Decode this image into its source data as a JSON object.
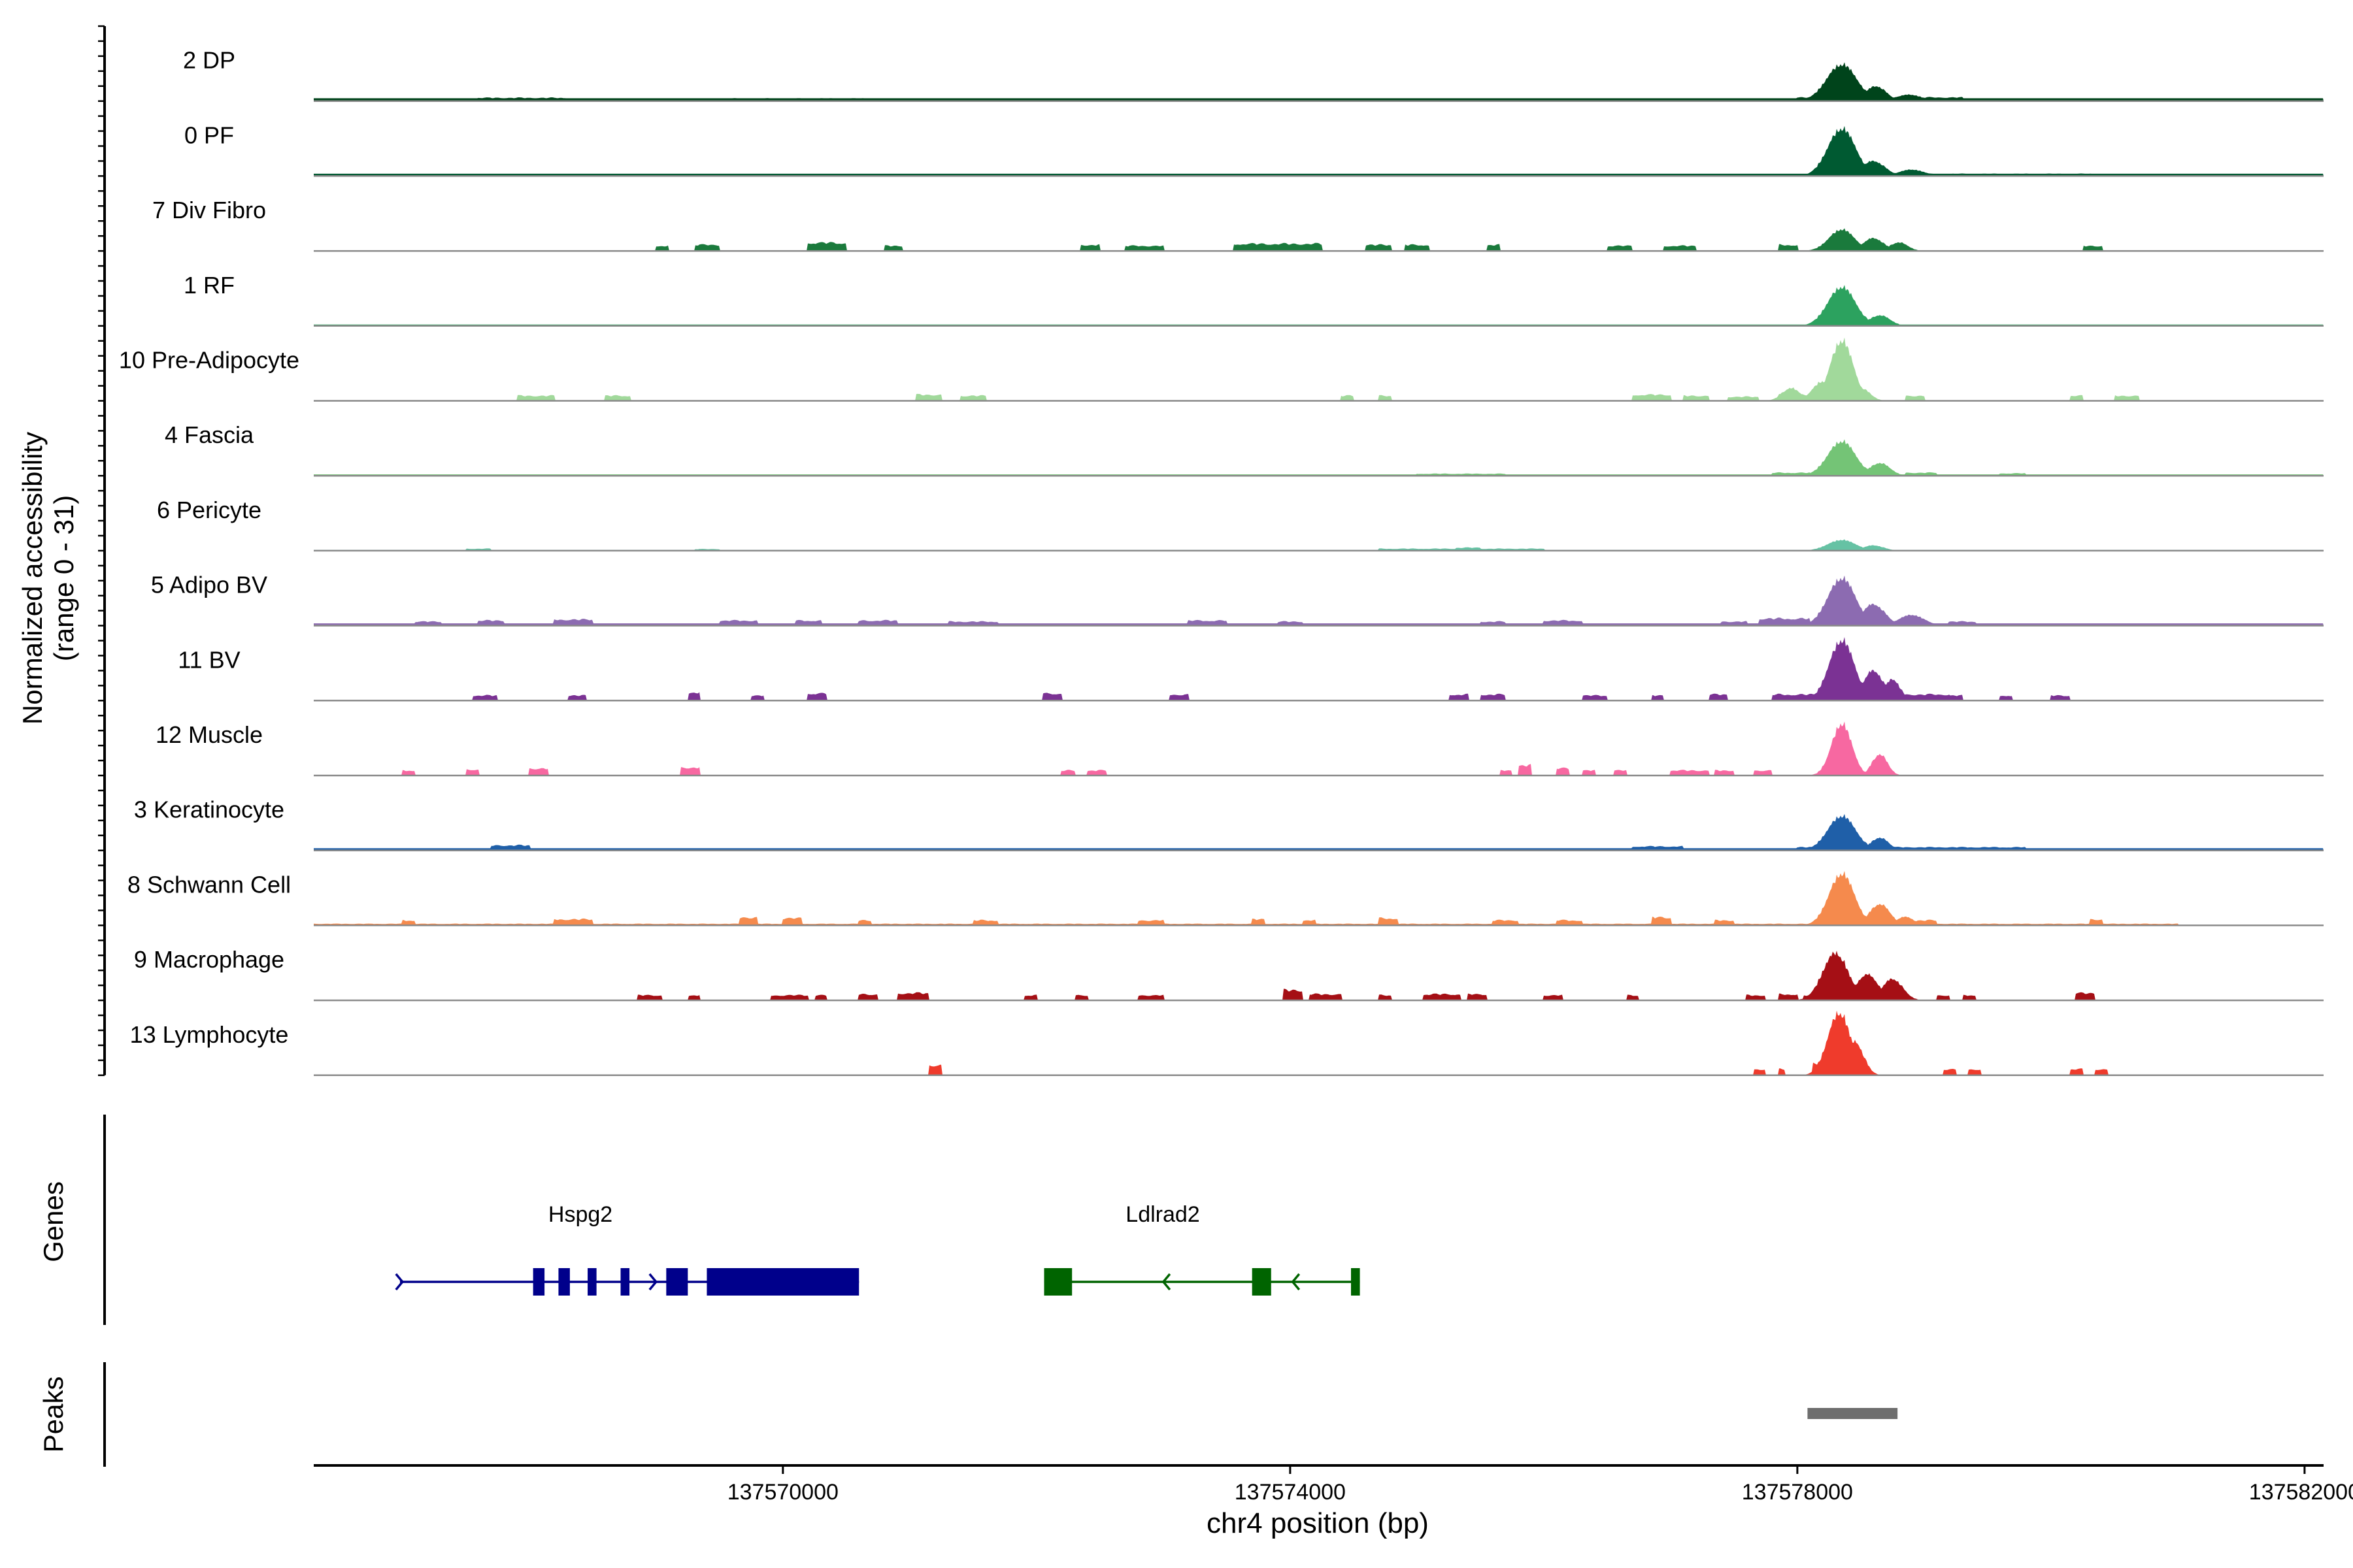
{
  "chart_data": {
    "type": "area",
    "title": "",
    "xlabel": "chr4 position (bp)",
    "ylabel_line1": "Normalized accessibility",
    "ylabel_line2": "(range 0 - 31)",
    "ylim": [
      0,
      31
    ],
    "xlim": [
      137566300,
      137582150
    ],
    "x_ticks": [
      {
        "value": 137570000,
        "label": "137570000"
      },
      {
        "value": 137574000,
        "label": "137574000"
      },
      {
        "value": 137578000,
        "label": "137578000"
      },
      {
        "value": 137582000,
        "label": "137582000"
      }
    ],
    "series": [
      {
        "name": "2 DP",
        "color": "#00441b",
        "base": 1.2,
        "spread": [
          [
            137566900,
            137567100,
            1.0
          ],
          [
            137567600,
            137568300,
            1.6
          ],
          [
            137569400,
            137570700,
            1.3
          ],
          [
            137573700,
            137575000,
            1.2
          ],
          [
            137576700,
            137577100,
            1.1
          ],
          [
            137578000,
            137579300,
            1.8
          ],
          [
            137579500,
            137580300,
            1.2
          ]
        ],
        "peaks": [
          [
            137578350,
            120,
            17
          ],
          [
            137578620,
            80,
            7
          ],
          [
            137578880,
            100,
            3
          ]
        ]
      },
      {
        "name": "0 PF",
        "color": "#005a32",
        "base": 1.0,
        "spread": [
          [
            137567700,
            137570000,
            1.0
          ],
          [
            137571500,
            137573500,
            1.0
          ],
          [
            137575000,
            137577600,
            0.9
          ],
          [
            137578900,
            137580400,
            1.1
          ]
        ],
        "peaks": [
          [
            137578350,
            110,
            22
          ],
          [
            137578600,
            90,
            7
          ],
          [
            137578900,
            100,
            3
          ]
        ]
      },
      {
        "name": "7 Div Fibro",
        "color": "#1a7a3c",
        "base": 0,
        "spread": [
          [
            137569000,
            137569100,
            2.5
          ],
          [
            137569300,
            137569500,
            3.0
          ],
          [
            137570200,
            137570500,
            4.0
          ],
          [
            137570800,
            137570950,
            2.5
          ],
          [
            137572350,
            137572500,
            3.0
          ],
          [
            137572700,
            137573000,
            2.5
          ],
          [
            137573550,
            137574250,
            3.5
          ],
          [
            137574600,
            137574800,
            3.0
          ],
          [
            137574900,
            137575100,
            3.0
          ],
          [
            137575550,
            137575650,
            3.0
          ],
          [
            137576500,
            137576700,
            2.5
          ],
          [
            137576950,
            137577200,
            2.5
          ],
          [
            137577850,
            137578000,
            3.0
          ],
          [
            137580250,
            137580400,
            2.5
          ]
        ],
        "peaks": [
          [
            137578350,
            100,
            10
          ],
          [
            137578600,
            80,
            6
          ],
          [
            137578800,
            70,
            4
          ]
        ]
      },
      {
        "name": "1 RF",
        "color": "#2ca25f",
        "base": 0.6,
        "spread": [
          [
            137566300,
            137581000,
            0.6
          ]
        ],
        "peaks": [
          [
            137578350,
            110,
            18
          ],
          [
            137578650,
            80,
            5
          ]
        ]
      },
      {
        "name": "10 Pre-Adipocyte",
        "color": "#a1d99b",
        "base": 0,
        "spread": [
          [
            137567900,
            137568200,
            2.5
          ],
          [
            137568600,
            137568800,
            2.5
          ],
          [
            137571050,
            137571250,
            3.0
          ],
          [
            137571400,
            137571600,
            2.5
          ],
          [
            137574400,
            137574500,
            2.5
          ],
          [
            137574700,
            137574800,
            2.5
          ],
          [
            137576700,
            137577000,
            3.0
          ],
          [
            137577100,
            137577300,
            2.5
          ],
          [
            137577450,
            137577700,
            2.0
          ],
          [
            137577850,
            137578100,
            3.0
          ],
          [
            137578850,
            137579000,
            2.5
          ],
          [
            137580150,
            137580250,
            2.5
          ],
          [
            137580500,
            137580700,
            2.5
          ]
        ],
        "peaks": [
          [
            137578350,
            90,
            28
          ],
          [
            137578200,
            80,
            9
          ],
          [
            137578500,
            70,
            6
          ],
          [
            137577950,
            70,
            6
          ]
        ]
      },
      {
        "name": "4 Fascia",
        "color": "#74c476",
        "base": 0.6,
        "spread": [
          [
            137566300,
            137580500,
            0.6
          ],
          [
            137575000,
            137575700,
            1.0
          ],
          [
            137577800,
            137578100,
            1.5
          ],
          [
            137578850,
            137579100,
            1.5
          ],
          [
            137579600,
            137579800,
            1.2
          ]
        ],
        "peaks": [
          [
            137578350,
            110,
            16
          ],
          [
            137578650,
            80,
            6
          ]
        ]
      },
      {
        "name": "6 Pericyte",
        "color": "#66c2a4",
        "base": 0.3,
        "spread": [
          [
            137567500,
            137567700,
            1.0
          ],
          [
            137569300,
            137569500,
            0.8
          ],
          [
            137574700,
            137576000,
            1.0
          ],
          [
            137575300,
            137575500,
            1.5
          ]
        ],
        "peaks": [
          [
            137578350,
            110,
            5
          ],
          [
            137578600,
            80,
            2.5
          ]
        ]
      },
      {
        "name": "5 Adipo BV",
        "color": "#8c6bb1",
        "base": 1.0,
        "spread": [
          [
            137567100,
            137567300,
            2.0
          ],
          [
            137567600,
            137567800,
            2.5
          ],
          [
            137568200,
            137568500,
            3.0
          ],
          [
            137569500,
            137569800,
            2.5
          ],
          [
            137570100,
            137570300,
            2.5
          ],
          [
            137570600,
            137570900,
            2.5
          ],
          [
            137571300,
            137571700,
            2.0
          ],
          [
            137573200,
            137573500,
            2.5
          ],
          [
            137573900,
            137574100,
            2.0
          ],
          [
            137575500,
            137575700,
            2.0
          ],
          [
            137576000,
            137576300,
            2.5
          ],
          [
            137577400,
            137577600,
            2.0
          ],
          [
            137577700,
            137578100,
            3.5
          ],
          [
            137579200,
            137579400,
            2.0
          ]
        ],
        "peaks": [
          [
            137578350,
            110,
            22
          ],
          [
            137578600,
            90,
            10
          ],
          [
            137578900,
            100,
            5
          ]
        ]
      },
      {
        "name": "11 BV",
        "color": "#7b3294",
        "base": 0,
        "spread": [
          [
            137567550,
            137567750,
            2.5
          ],
          [
            137568300,
            137568450,
            2.5
          ],
          [
            137569250,
            137569350,
            4.0
          ],
          [
            137569750,
            137569850,
            2.5
          ],
          [
            137570200,
            137570350,
            3.5
          ],
          [
            137572050,
            137572200,
            3.5
          ],
          [
            137573050,
            137573200,
            3.0
          ],
          [
            137575250,
            137575400,
            3.0
          ],
          [
            137575500,
            137575700,
            3.0
          ],
          [
            137576300,
            137576500,
            2.5
          ],
          [
            137576850,
            137576950,
            2.5
          ],
          [
            137577300,
            137577450,
            3.0
          ],
          [
            137578900,
            137579000,
            2.5
          ],
          [
            137579200,
            137579300,
            2.5
          ],
          [
            137579600,
            137579700,
            2.5
          ],
          [
            137580000,
            137580150,
            2.5
          ],
          [
            137577800,
            137579200,
            3.0
          ]
        ],
        "peaks": [
          [
            137578350,
            100,
            28
          ],
          [
            137578600,
            80,
            14
          ],
          [
            137578750,
            60,
            10
          ]
        ]
      },
      {
        "name": "12 Muscle",
        "color": "#f768a1",
        "base": 0,
        "spread": [
          [
            137567000,
            137567100,
            2.5
          ],
          [
            137567500,
            137567600,
            3.0
          ],
          [
            137568000,
            137568150,
            3.5
          ],
          [
            137569200,
            137569350,
            4.0
          ],
          [
            137572200,
            137572300,
            2.5
          ],
          [
            137572400,
            137572550,
            2.5
          ],
          [
            137575650,
            137575750,
            2.5
          ],
          [
            137575800,
            137575900,
            5.0
          ],
          [
            137576100,
            137576200,
            3.5
          ],
          [
            137576300,
            137576400,
            2.5
          ],
          [
            137576550,
            137576650,
            2.5
          ],
          [
            137577000,
            137577150,
            2.5
          ],
          [
            137577150,
            137577300,
            2.5
          ],
          [
            137577350,
            137577500,
            2.5
          ],
          [
            137577650,
            137577800,
            2.5
          ]
        ],
        "peaks": [
          [
            137578350,
            80,
            24
          ],
          [
            137578650,
            60,
            10
          ]
        ]
      },
      {
        "name": "3 Keratinocyte",
        "color": "#1f5fa8",
        "base": 1.0,
        "spread": [
          [
            137567000,
            137581000,
            1.0
          ],
          [
            137567700,
            137568000,
            2.5
          ],
          [
            137576700,
            137577100,
            2.0
          ],
          [
            137578000,
            137579800,
            1.6
          ]
        ],
        "peaks": [
          [
            137578350,
            110,
            16
          ],
          [
            137578650,
            70,
            6
          ]
        ]
      },
      {
        "name": "8 Schwann Cell",
        "color": "#f58a4d",
        "base": 0,
        "spread": [
          [
            137566300,
            137581000,
            0.8
          ],
          [
            137567000,
            137567100,
            2.5
          ],
          [
            137568200,
            137568500,
            3.0
          ],
          [
            137569650,
            137569800,
            4.0
          ],
          [
            137570000,
            137570150,
            3.5
          ],
          [
            137570600,
            137570700,
            2.5
          ],
          [
            137571500,
            137571700,
            2.5
          ],
          [
            137572800,
            137573000,
            2.5
          ],
          [
            137573700,
            137573800,
            3.0
          ],
          [
            137574100,
            137574200,
            2.5
          ],
          [
            137574700,
            137574850,
            3.5
          ],
          [
            137575600,
            137575800,
            2.5
          ],
          [
            137576100,
            137576300,
            2.5
          ],
          [
            137576850,
            137577000,
            4.0
          ],
          [
            137577350,
            137577500,
            2.5
          ],
          [
            137578950,
            137579100,
            2.5
          ],
          [
            137580300,
            137580400,
            3.0
          ]
        ],
        "peaks": [
          [
            137578350,
            100,
            24
          ],
          [
            137578650,
            80,
            10
          ],
          [
            137578850,
            70,
            4
          ]
        ]
      },
      {
        "name": "9 Macrophage",
        "color": "#a50f15",
        "base": 0,
        "spread": [
          [
            137568850,
            137569050,
            2.5
          ],
          [
            137569250,
            137569350,
            2.5
          ],
          [
            137569900,
            137570200,
            2.5
          ],
          [
            137570250,
            137570350,
            2.5
          ],
          [
            137570600,
            137570750,
            3.0
          ],
          [
            137570900,
            137571150,
            3.5
          ],
          [
            137571900,
            137572000,
            2.5
          ],
          [
            137572300,
            137572400,
            2.5
          ],
          [
            137572800,
            137573000,
            2.5
          ],
          [
            137573950,
            137574100,
            5.0
          ],
          [
            137574150,
            137574400,
            3.0
          ],
          [
            137574700,
            137574800,
            2.5
          ],
          [
            137575050,
            137575350,
            3.0
          ],
          [
            137575400,
            137575550,
            3.0
          ],
          [
            137576000,
            137576150,
            2.5
          ],
          [
            137576650,
            137576750,
            2.5
          ],
          [
            137577600,
            137577750,
            2.5
          ],
          [
            137577850,
            137578000,
            3.0
          ],
          [
            137578050,
            137578150,
            2.5
          ],
          [
            137579100,
            137579200,
            2.5
          ],
          [
            137579300,
            137579400,
            2.5
          ],
          [
            137580200,
            137580350,
            3.5
          ]
        ],
        "peaks": [
          [
            137578300,
            100,
            22
          ],
          [
            137578550,
            90,
            12
          ],
          [
            137578750,
            80,
            10
          ]
        ]
      },
      {
        "name": "13 Lymphocyte",
        "color": "#ef3b2c",
        "base": 0,
        "spread": [
          [
            137571150,
            137571250,
            5.0
          ],
          [
            137577650,
            137577750,
            3.0
          ],
          [
            137577850,
            137577900,
            3.0
          ],
          [
            137578120,
            137578500,
            6.0
          ],
          [
            137579150,
            137579250,
            3.0
          ],
          [
            137579350,
            137579450,
            3.0
          ],
          [
            137580150,
            137580250,
            3.0
          ],
          [
            137580350,
            137580450,
            3.0
          ]
        ],
        "peaks": [
          [
            137578330,
            90,
            29
          ],
          [
            137578450,
            70,
            16
          ]
        ]
      }
    ],
    "genes_panel_label": "Genes",
    "genes": [
      {
        "name": "Hspg2",
        "color": "#00008b",
        "start": 137566980,
        "end": 137570600,
        "strand": "+",
        "exons": [
          [
            137568030,
            137568120
          ],
          [
            137568230,
            137568320
          ],
          [
            137568460,
            137568530
          ],
          [
            137568720,
            137568790
          ],
          [
            137569080,
            137569250
          ],
          [
            137569400,
            137570600
          ]
        ],
        "arrows": [
          137567000,
          137569000
        ]
      },
      {
        "name": "Ldlrad2",
        "color": "#006400",
        "start": 137572060,
        "end": 137574550,
        "strand": "-",
        "exons": [
          [
            137572060,
            137572280
          ],
          [
            137573700,
            137573850
          ],
          [
            137574480,
            137574550
          ]
        ],
        "arrows": [
          137573000,
          137574020
        ]
      }
    ],
    "peaks_panel_label": "Peaks",
    "peak_regions": [
      {
        "start": 137578080,
        "end": 137578790,
        "color": "#6e6e6e"
      }
    ]
  }
}
